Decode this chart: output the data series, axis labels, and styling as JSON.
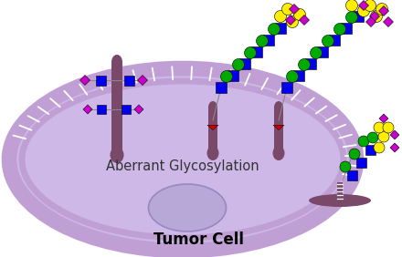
{
  "title": "Tumor Cell",
  "label": "Aberrant Glycosylation",
  "bg_color": "#ffffff",
  "cell_fill": "#c8b4e0",
  "cell_edge": "#a090c8",
  "membrane_fill": "#c8a8d8",
  "membrane_teeth": "#ffffff",
  "protein_color": "#7a4868",
  "blue": "#0000ee",
  "green": "#00aa00",
  "yellow": "#ffee00",
  "magenta": "#cc00cc",
  "red": "#cc0000",
  "gray_line": "#888888",
  "nucleus_fill": "#b0a0d0",
  "nucleus_edge": "#9080b8"
}
